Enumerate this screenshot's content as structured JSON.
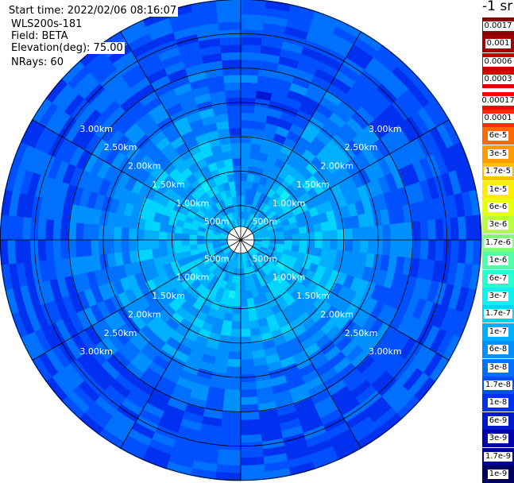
{
  "header": {
    "start_time": "Start time: 2022/02/06 08:16:07",
    "instrument": "WLS200s-181",
    "field": "Field: BETA",
    "elevation": "Elevation(deg): 75.00",
    "nrays": "NRays: 60"
  },
  "colorbar": {
    "unit": "-1 sr",
    "entries": [
      {
        "label": "0.0017",
        "color": "#8b0000"
      },
      {
        "label": "0.001",
        "color": "#a00000"
      },
      {
        "label": "0.0006",
        "color": "#c80000"
      },
      {
        "label": "0.0003",
        "color": "#e00000"
      },
      {
        "label": "0.00017",
        "color": "#ff0000"
      },
      {
        "label": "0.0001",
        "color": "#ff2a00"
      },
      {
        "label": "6e-5",
        "color": "#ff6a00"
      },
      {
        "label": "3e-5",
        "color": "#ff9a00"
      },
      {
        "label": "1.7e-5",
        "color": "#ffc000"
      },
      {
        "label": "1e-5",
        "color": "#ffee00"
      },
      {
        "label": "6e-6",
        "color": "#e8ff10"
      },
      {
        "label": "3e-6",
        "color": "#b8ff40"
      },
      {
        "label": "1.7e-6",
        "color": "#80ff78"
      },
      {
        "label": "1e-6",
        "color": "#50ffa8"
      },
      {
        "label": "6e-7",
        "color": "#28ffd0"
      },
      {
        "label": "3e-7",
        "color": "#10f0f0"
      },
      {
        "label": "1.7e-7",
        "color": "#00d4ff"
      },
      {
        "label": "1e-7",
        "color": "#00b0ff"
      },
      {
        "label": "6e-8",
        "color": "#0090ff"
      },
      {
        "label": "3e-8",
        "color": "#0070ff"
      },
      {
        "label": "1.7e-8",
        "color": "#0050ff"
      },
      {
        "label": "1e-8",
        "color": "#0030f0"
      },
      {
        "label": "6e-9",
        "color": "#0018d0"
      },
      {
        "label": "3e-9",
        "color": "#0000b0"
      },
      {
        "label": "1.7e-9",
        "color": "#000090"
      },
      {
        "label": "1e-9",
        "color": "#000060"
      }
    ]
  },
  "chart_data": {
    "type": "heatmap",
    "projection": "polar (PPI scan)",
    "field": "BETA",
    "elevation_deg": 75.0,
    "nrays": 60,
    "range_ring_labels": [
      "500m",
      "1.00km",
      "1.50km",
      "2.00km",
      "2.50km",
      "3.00km"
    ],
    "range_rings_km": [
      0.5,
      1.0,
      1.5,
      2.0,
      2.5,
      3.0
    ],
    "spokes_deg": [
      0,
      30,
      60,
      90,
      120,
      150,
      180,
      210,
      240,
      270,
      300,
      330
    ],
    "max_range_km": 3.5,
    "value_scale": "log",
    "typical_values": {
      "near_range_below_1km": "3e-7 to 1e-7",
      "mid_range_1_to_2km": "1e-7 to 3e-8",
      "far_range_beyond_2km": "3e-8 to 3e-9"
    }
  }
}
